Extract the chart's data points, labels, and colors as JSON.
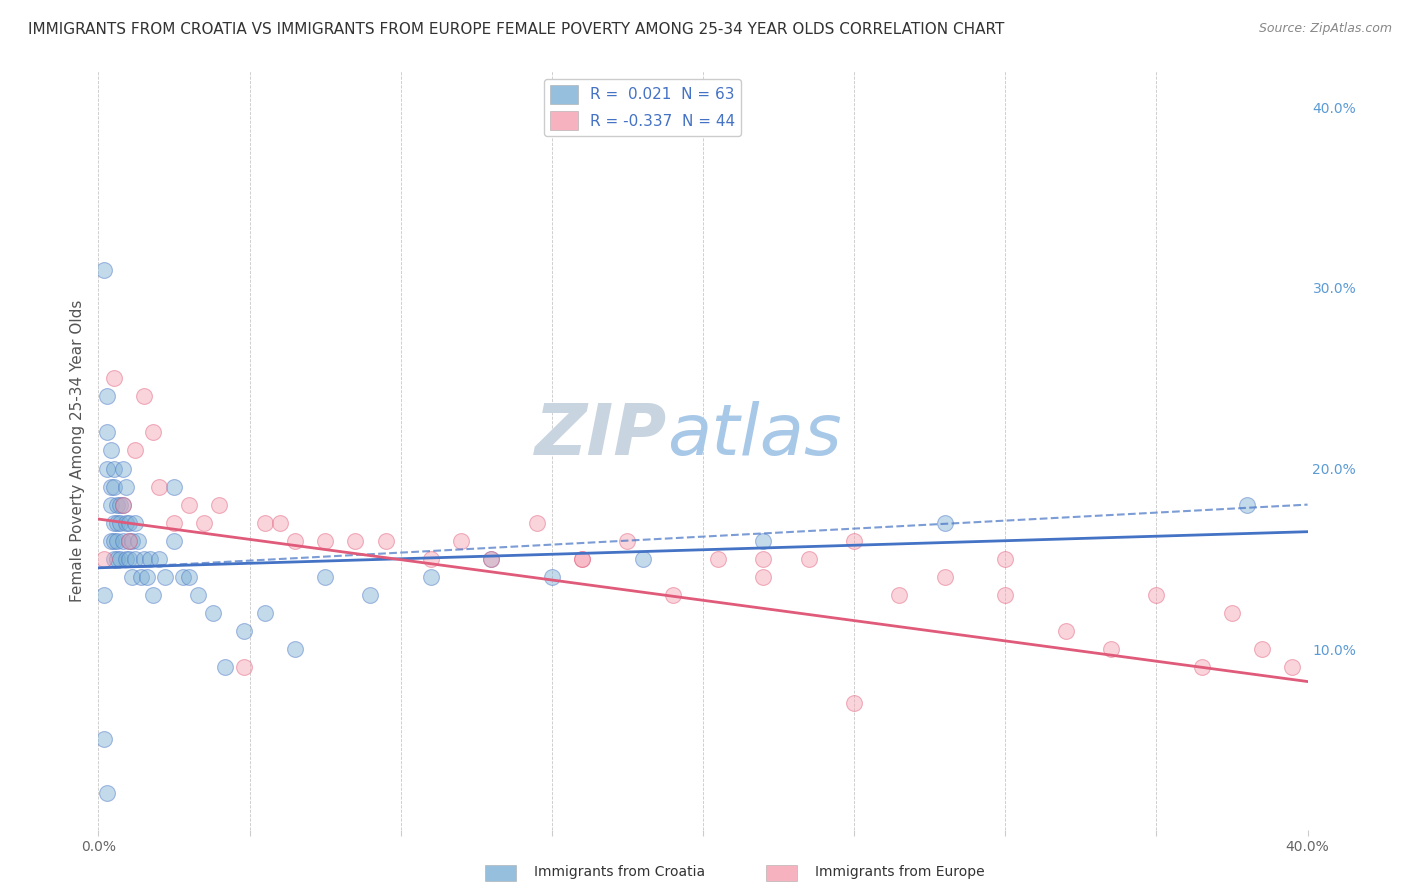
{
  "title": "IMMIGRANTS FROM CROATIA VS IMMIGRANTS FROM EUROPE FEMALE POVERTY AMONG 25-34 YEAR OLDS CORRELATION CHART",
  "source": "Source: ZipAtlas.com",
  "ylabel": "Female Poverty Among 25-34 Year Olds",
  "xlim": [
    0.0,
    0.4
  ],
  "ylim": [
    0.0,
    0.42
  ],
  "blue_scatter_x": [
    0.002,
    0.002,
    0.002,
    0.003,
    0.003,
    0.003,
    0.003,
    0.004,
    0.004,
    0.004,
    0.004,
    0.005,
    0.005,
    0.005,
    0.005,
    0.005,
    0.006,
    0.006,
    0.006,
    0.006,
    0.007,
    0.007,
    0.007,
    0.008,
    0.008,
    0.008,
    0.009,
    0.009,
    0.009,
    0.01,
    0.01,
    0.01,
    0.011,
    0.011,
    0.012,
    0.012,
    0.013,
    0.014,
    0.015,
    0.016,
    0.017,
    0.018,
    0.02,
    0.022,
    0.025,
    0.025,
    0.028,
    0.03,
    0.033,
    0.038,
    0.042,
    0.048,
    0.055,
    0.065,
    0.075,
    0.09,
    0.11,
    0.13,
    0.15,
    0.18,
    0.22,
    0.28,
    0.38
  ],
  "blue_scatter_y": [
    0.31,
    0.13,
    0.05,
    0.02,
    0.24,
    0.22,
    0.2,
    0.21,
    0.19,
    0.18,
    0.16,
    0.2,
    0.19,
    0.17,
    0.16,
    0.15,
    0.18,
    0.17,
    0.16,
    0.15,
    0.18,
    0.17,
    0.15,
    0.2,
    0.18,
    0.16,
    0.19,
    0.17,
    0.15,
    0.17,
    0.16,
    0.15,
    0.16,
    0.14,
    0.17,
    0.15,
    0.16,
    0.14,
    0.15,
    0.14,
    0.15,
    0.13,
    0.15,
    0.14,
    0.19,
    0.16,
    0.14,
    0.14,
    0.13,
    0.12,
    0.09,
    0.11,
    0.12,
    0.1,
    0.14,
    0.13,
    0.14,
    0.15,
    0.14,
    0.15,
    0.16,
    0.17,
    0.18
  ],
  "pink_scatter_x": [
    0.002,
    0.005,
    0.008,
    0.01,
    0.012,
    0.015,
    0.018,
    0.02,
    0.025,
    0.03,
    0.035,
    0.04,
    0.048,
    0.055,
    0.06,
    0.065,
    0.075,
    0.085,
    0.095,
    0.11,
    0.12,
    0.13,
    0.145,
    0.16,
    0.175,
    0.19,
    0.205,
    0.22,
    0.235,
    0.25,
    0.265,
    0.28,
    0.3,
    0.32,
    0.335,
    0.35,
    0.365,
    0.375,
    0.385,
    0.395,
    0.3,
    0.25,
    0.22,
    0.16
  ],
  "pink_scatter_y": [
    0.15,
    0.25,
    0.18,
    0.16,
    0.21,
    0.24,
    0.22,
    0.19,
    0.17,
    0.18,
    0.17,
    0.18,
    0.09,
    0.17,
    0.17,
    0.16,
    0.16,
    0.16,
    0.16,
    0.15,
    0.16,
    0.15,
    0.17,
    0.15,
    0.16,
    0.13,
    0.15,
    0.14,
    0.15,
    0.07,
    0.13,
    0.14,
    0.13,
    0.11,
    0.1,
    0.13,
    0.09,
    0.12,
    0.1,
    0.09,
    0.15,
    0.16,
    0.15,
    0.15
  ],
  "blue_line_x": [
    0.0,
    0.4
  ],
  "blue_line_y": [
    0.145,
    0.165
  ],
  "blue_dashed_line_x": [
    0.005,
    0.4
  ],
  "blue_dashed_line_y": [
    0.145,
    0.18
  ],
  "pink_line_x": [
    0.0,
    0.4
  ],
  "pink_line_y": [
    0.172,
    0.082
  ],
  "blue_color": "#7bafd4",
  "pink_color": "#f4a0b0",
  "blue_line_color": "#4472c4",
  "pink_line_color": "#e05a7a",
  "grid_color": "#c8c8c8",
  "background_color": "#ffffff",
  "title_fontsize": 11,
  "source_fontsize": 9,
  "ylabel_fontsize": 11,
  "tick_fontsize": 10,
  "legend_fontsize": 11,
  "right_tick_color": "#5b9bd5",
  "dot_size": 130,
  "dot_alpha": 0.45,
  "watermark_zip_color": "#c8d4e0",
  "watermark_atlas_color": "#a8c8e8"
}
